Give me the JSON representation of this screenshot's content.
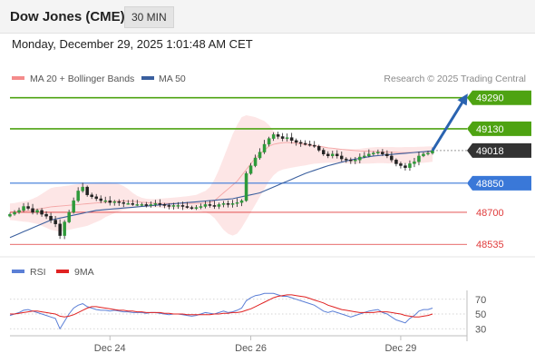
{
  "header": {
    "title": "Dow Jones (CME)",
    "timeframe": "30 MIN"
  },
  "datetime": "Monday, December 29, 2025 1:01:48 AM CET",
  "credit": "Research © 2025 Trading Central",
  "colors": {
    "bollinger": "#f48b8b",
    "ma50": "#3a5f9e",
    "resistance": "#4ea312",
    "support_blue": "#3a78d8",
    "support_red": "#e03c3c",
    "last_price": "#333333",
    "rsi": "#5b7fd6",
    "rsi_ma": "#e02222",
    "arrow": "#2a63b0"
  },
  "chart_data": [
    {
      "type": "candlestick",
      "name": "price",
      "legend": [
        {
          "label": "MA 20 + Bollinger Bands",
          "color": "#f48b8b"
        },
        {
          "label": "MA 50",
          "color": "#3a5f9e"
        }
      ],
      "ylim": [
        48480,
        49340
      ],
      "levels": [
        {
          "value": 49290,
          "label": "49290",
          "style": "resistance"
        },
        {
          "value": 49130,
          "label": "49130",
          "style": "resistance"
        },
        {
          "value": 49018,
          "label": "49018",
          "style": "last"
        },
        {
          "value": 48850,
          "label": "48850",
          "style": "support_blue"
        },
        {
          "value": 48700,
          "label": "48700",
          "style": "support_red"
        },
        {
          "value": 48535,
          "label": "48535",
          "style": "support_red"
        }
      ],
      "x_ticks": [
        {
          "index": 22,
          "label": "Dec 24"
        },
        {
          "index": 53,
          "label": "Dec 26"
        },
        {
          "index": 86,
          "label": "Dec 29"
        }
      ],
      "candle_count": 94,
      "close": [
        48690,
        48700,
        48710,
        48730,
        48720,
        48700,
        48710,
        48690,
        48680,
        48660,
        48640,
        48580,
        48650,
        48700,
        48760,
        48810,
        48830,
        48790,
        48780,
        48770,
        48760,
        48760,
        48750,
        48755,
        48750,
        48745,
        48745,
        48740,
        48740,
        48740,
        48735,
        48740,
        48745,
        48740,
        48735,
        48730,
        48735,
        48735,
        48730,
        48725,
        48720,
        48725,
        48730,
        48740,
        48735,
        48730,
        48740,
        48745,
        48740,
        48745,
        48750,
        48760,
        48900,
        48940,
        48980,
        49010,
        49050,
        49080,
        49100,
        49090,
        49080,
        49085,
        49070,
        49060,
        49055,
        49050,
        49045,
        49040,
        49020,
        49000,
        48990,
        49000,
        48990,
        48975,
        48970,
        48965,
        48970,
        48985,
        48990,
        49000,
        49005,
        49010,
        49000,
        48990,
        48970,
        48950,
        48940,
        48930,
        48950,
        48960,
        48990,
        49000,
        49005,
        49018
      ],
      "ma50": [
        48570,
        48580,
        48590,
        48600,
        48610,
        48620,
        48630,
        48640,
        48650,
        48660,
        48665,
        48670,
        48675,
        48680,
        48685,
        48690,
        48695,
        48700,
        48705,
        48710,
        48712,
        48714,
        48716,
        48718,
        48720,
        48722,
        48724,
        48726,
        48728,
        48730,
        48732,
        48734,
        48736,
        48738,
        48740,
        48742,
        48744,
        48746,
        48748,
        48750,
        48752,
        48754,
        48756,
        48758,
        48760,
        48762,
        48764,
        48766,
        48768,
        48770,
        48775,
        48780,
        48785,
        48790,
        48795,
        48800,
        48810,
        48820,
        48830,
        48840,
        48850,
        48860,
        48870,
        48880,
        48890,
        48900,
        48908,
        48916,
        48924,
        48932,
        48940,
        48946,
        48952,
        48958,
        48964,
        48970,
        48974,
        48978,
        48982,
        48986,
        48990,
        48992,
        48994,
        48996,
        48998,
        49000,
        49002,
        49004,
        49006,
        49008,
        49010,
        49012,
        49014,
        49016
      ],
      "bb_upper": [
        48745,
        48748,
        48752,
        48756,
        48760,
        48770,
        48780,
        48795,
        48810,
        48825,
        48830,
        48832,
        48835,
        48838,
        48842,
        48845,
        48848,
        48850,
        48852,
        48853,
        48854,
        48855,
        48853,
        48850,
        48845,
        48835,
        48820,
        48800,
        48785,
        48775,
        48770,
        48768,
        48768,
        48770,
        48772,
        48774,
        48776,
        48778,
        48780,
        48783,
        48786,
        48790,
        48800,
        48810,
        48830,
        48870,
        48920,
        48980,
        49040,
        49100,
        49150,
        49190,
        49200,
        49195,
        49190,
        49180,
        49170,
        49150,
        49120,
        49100,
        49085,
        49080,
        49075,
        49070,
        49065,
        49060,
        49055,
        49050,
        49045,
        49040,
        49035,
        49030,
        49028,
        49026,
        49025,
        49025,
        49025,
        49027,
        49030,
        49033,
        49035,
        49036,
        49036,
        49036,
        49036,
        49035,
        49035,
        49036,
        49036,
        49036,
        49037,
        49038,
        49039,
        49040
      ],
      "bb_lower": [
        48660,
        48658,
        48655,
        48652,
        48650,
        48645,
        48640,
        48630,
        48620,
        48610,
        48605,
        48600,
        48605,
        48610,
        48615,
        48620,
        48625,
        48630,
        48640,
        48650,
        48660,
        48675,
        48685,
        48695,
        48705,
        48712,
        48718,
        48722,
        48724,
        48726,
        48726,
        48726,
        48725,
        48724,
        48722,
        48720,
        48718,
        48716,
        48714,
        48712,
        48710,
        48708,
        48705,
        48700,
        48690,
        48670,
        48640,
        48610,
        48590,
        48580,
        48590,
        48620,
        48660,
        48700,
        48740,
        48780,
        48820,
        48860,
        48890,
        48910,
        48920,
        48925,
        48930,
        48934,
        48938,
        48942,
        48946,
        48950,
        48952,
        48954,
        48955,
        48955,
        48954,
        48953,
        48952,
        48951,
        48950,
        48950,
        48950,
        48951,
        48952,
        48953,
        48953,
        48952,
        48951,
        48950,
        48949,
        48950,
        48951,
        48952,
        48953,
        48955,
        48957,
        48960
      ],
      "bb_mid": [
        48700,
        48702,
        48704,
        48706,
        48708,
        48712,
        48716,
        48720,
        48724,
        48728,
        48730,
        48732,
        48734,
        48736,
        48738,
        48740,
        48742,
        48744,
        48746,
        48748,
        48750,
        48752,
        48754,
        48756,
        48758,
        48758,
        48757,
        48756,
        48755,
        48752,
        48750,
        48748,
        48747,
        48746,
        48746,
        48746,
        48746,
        48746,
        48746,
        48746,
        48746,
        48746,
        48747,
        48748,
        48750,
        48760,
        48780,
        48800,
        48820,
        48840,
        48860,
        48890,
        48920,
        48950,
        48980,
        49000,
        49020,
        49040,
        49050,
        49055,
        49058,
        49060,
        49058,
        49055,
        49052,
        49048,
        49045,
        49042,
        49040,
        49036,
        49032,
        49030,
        49027,
        49024,
        49022,
        49020,
        49018,
        49016,
        49015,
        49014,
        49013,
        49012,
        49011,
        49010,
        49009,
        49008,
        49007,
        49007,
        49008,
        49009,
        49010,
        49011,
        49012,
        49013
      ],
      "forecast": {
        "target": 49290
      }
    },
    {
      "type": "line",
      "name": "RSI",
      "legend": [
        {
          "label": "RSI",
          "color": "#5b7fd6"
        },
        {
          "label": "9MA",
          "color": "#e02222"
        }
      ],
      "ylim": [
        18,
        82
      ],
      "y_ticks": [
        70,
        50,
        30
      ],
      "rsi": [
        48,
        50,
        52,
        55,
        56,
        54,
        52,
        50,
        48,
        46,
        44,
        30,
        40,
        50,
        58,
        62,
        64,
        60,
        58,
        56,
        55,
        55,
        54,
        55,
        54,
        53,
        53,
        52,
        52,
        52,
        51,
        52,
        52,
        51,
        50,
        49,
        50,
        50,
        49,
        48,
        47,
        48,
        50,
        52,
        51,
        50,
        52,
        54,
        52,
        53,
        55,
        58,
        68,
        72,
        75,
        76,
        78,
        78,
        78,
        76,
        74,
        74,
        72,
        70,
        68,
        66,
        64,
        62,
        58,
        54,
        52,
        54,
        52,
        50,
        48,
        46,
        48,
        50,
        52,
        54,
        55,
        56,
        52,
        50,
        46,
        42,
        40,
        38,
        44,
        48,
        54,
        56,
        56,
        58
      ],
      "ma9": [
        50,
        50,
        51,
        52,
        53,
        54,
        54,
        53,
        52,
        51,
        50,
        47,
        46,
        47,
        49,
        52,
        55,
        58,
        60,
        60,
        59,
        58,
        57,
        56,
        55,
        55,
        54,
        54,
        53,
        53,
        52,
        52,
        52,
        52,
        51,
        51,
        50,
        50,
        50,
        49,
        49,
        49,
        49,
        49,
        49,
        50,
        50,
        51,
        51,
        52,
        52,
        53,
        55,
        57,
        60,
        63,
        66,
        69,
        72,
        74,
        75,
        76,
        76,
        75,
        74,
        73,
        71,
        69,
        67,
        65,
        62,
        60,
        58,
        56,
        55,
        54,
        53,
        52,
        52,
        52,
        52,
        53,
        53,
        53,
        52,
        51,
        50,
        48,
        47,
        46,
        46,
        47,
        48,
        50
      ]
    }
  ]
}
